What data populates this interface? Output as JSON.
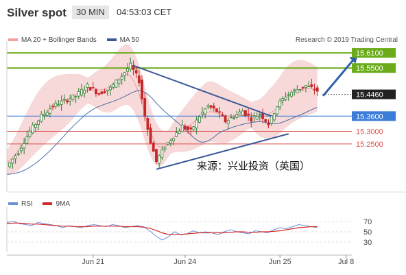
{
  "header": {
    "symbol": "Silver spot",
    "timeframe": "30 MIN",
    "timestamp": "04:53:03 CET"
  },
  "legend": {
    "ma20_label": "MA 20 + Bollinger Bands",
    "ma50_label": "MA 50",
    "rsi_label": "RSI",
    "rsi_ma_label": "9MA"
  },
  "research_credit": "Research © 2019 Trading Central",
  "annotation": "来源：兴业投资（英国）",
  "colors": {
    "resistance": "#6aab1a",
    "support": "#d9534f",
    "pivot": "#3b7dd8",
    "trend": "#3b5998",
    "bollinger_fill": "#f6d2d2",
    "ma50": "#4a6fa5",
    "rsi": "#6a8fd8",
    "rsi_ma": "#d62728",
    "price_box": "#222222"
  },
  "chart_data": [
    {
      "type": "line",
      "title": "Silver spot 30 MIN",
      "series": [
        {
          "name": "MA 20 + Bollinger Bands"
        },
        {
          "name": "MA 50"
        }
      ],
      "x_ticks": [
        "Jun 21",
        "Jun 24",
        "Jun 25",
        "Jul 8"
      ],
      "price_levels": [
        {
          "value": 15.61,
          "label": "15.6100",
          "kind": "resistance"
        },
        {
          "value": 15.55,
          "label": "15.5500",
          "kind": "resistance"
        },
        {
          "value": 15.446,
          "label": "15.4460",
          "kind": "last-price"
        },
        {
          "value": 15.36,
          "label": "15.3600",
          "kind": "pivot"
        },
        {
          "value": 15.3,
          "label": "15.3000",
          "kind": "support"
        },
        {
          "value": 15.25,
          "label": "15.2500",
          "kind": "support"
        }
      ],
      "price_path": [
        [
          0,
          15.16
        ],
        [
          4,
          15.22
        ],
        [
          8,
          15.3
        ],
        [
          12,
          15.36
        ],
        [
          16,
          15.4
        ],
        [
          20,
          15.42
        ],
        [
          24,
          15.44
        ],
        [
          28,
          15.48
        ],
        [
          32,
          15.45
        ],
        [
          36,
          15.47
        ],
        [
          40,
          15.52
        ],
        [
          43,
          15.56
        ],
        [
          46,
          15.5
        ],
        [
          48,
          15.36
        ],
        [
          50,
          15.26
        ],
        [
          52,
          15.18
        ],
        [
          55,
          15.24
        ],
        [
          58,
          15.28
        ],
        [
          61,
          15.32
        ],
        [
          64,
          15.3
        ],
        [
          67,
          15.36
        ],
        [
          70,
          15.4
        ],
        [
          73,
          15.38
        ],
        [
          76,
          15.34
        ],
        [
          79,
          15.36
        ],
        [
          82,
          15.38
        ],
        [
          85,
          15.35
        ],
        [
          88,
          15.37
        ],
        [
          91,
          15.33
        ],
        [
          94,
          15.4
        ],
        [
          97,
          15.44
        ],
        [
          100,
          15.46
        ],
        [
          104,
          15.48
        ],
        [
          108,
          15.46
        ]
      ],
      "trendlines": [
        {
          "from": [
            44,
            15.56
          ],
          "to": [
            92,
            15.36
          ]
        },
        {
          "from": [
            52,
            15.15
          ],
          "to": [
            98,
            15.29
          ]
        }
      ],
      "projection": {
        "from": [
          110,
          15.44
        ],
        "to": [
          122,
          15.6
        ]
      }
    },
    {
      "type": "line",
      "title": "RSI",
      "series": [
        {
          "name": "RSI"
        },
        {
          "name": "9MA"
        }
      ],
      "y_ticks": [
        70,
        50,
        30
      ],
      "rsi_values": [
        68,
        70,
        66,
        64,
        62,
        68,
        66,
        64,
        62,
        58,
        62,
        60,
        58,
        62,
        64,
        62,
        60,
        64,
        62,
        58,
        60,
        62,
        60,
        52,
        42,
        34,
        40,
        50,
        44,
        46,
        52,
        48,
        50,
        48,
        44,
        50,
        54,
        50,
        48,
        46,
        52,
        50,
        48,
        54,
        58,
        56,
        60,
        64,
        62,
        60,
        58
      ],
      "ma_values": [
        66,
        67,
        67,
        66,
        65,
        65,
        64,
        63,
        62,
        61,
        61,
        60,
        60,
        60,
        61,
        61,
        61,
        61,
        61,
        60,
        60,
        60,
        59,
        57,
        53,
        48,
        45,
        45,
        45,
        46,
        47,
        48,
        48,
        48,
        48,
        48,
        49,
        50,
        50,
        49,
        49,
        50,
        50,
        51,
        52,
        54,
        56,
        58,
        59,
        60,
        60
      ]
    }
  ]
}
